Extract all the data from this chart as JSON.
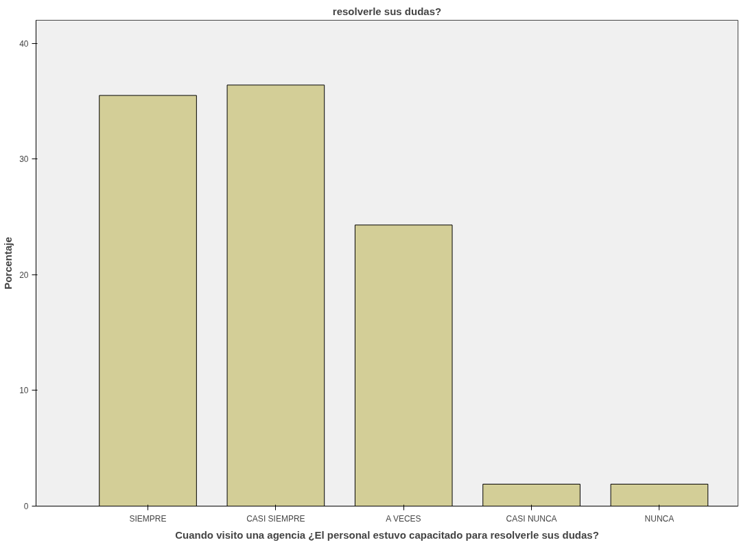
{
  "chart_data": {
    "type": "bar",
    "title": "resolverle sus dudas?",
    "categories": [
      "SIEMPRE",
      "CASI SIEMPRE",
      "A VECES",
      "CASI NUNCA",
      "NUNCA"
    ],
    "values": [
      35.5,
      36.4,
      24.3,
      1.9,
      1.9
    ],
    "color": "#d3ce97",
    "xlabel": "Cuando visito una agencia ¿El personal estuvo capacitado para resolverle sus dudas?",
    "ylabel": "Porcentaje",
    "ylim": [
      0,
      42
    ],
    "yticks": [
      0,
      10,
      20,
      30,
      40
    ],
    "grid": false
  }
}
